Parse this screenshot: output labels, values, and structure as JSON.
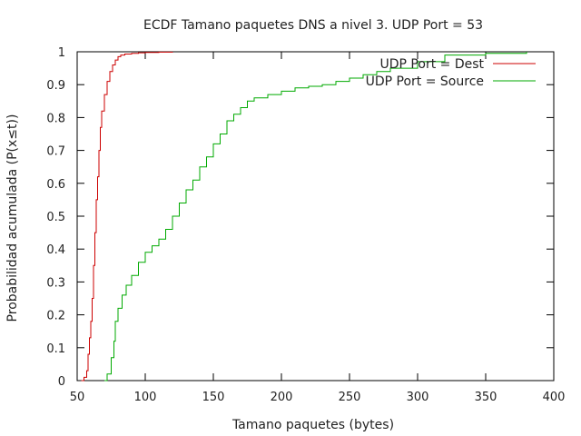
{
  "chart_data": {
    "type": "line",
    "title": "ECDF Tamano paquetes DNS a nivel 3. UDP Port = 53",
    "xlabel": "Tamano paquetes (bytes)",
    "ylabel": "Probabilidad acumulada (P(x≤t))",
    "xlim": [
      50,
      400
    ],
    "ylim": [
      0,
      1
    ],
    "xticks": [
      50,
      100,
      150,
      200,
      250,
      300,
      350,
      400
    ],
    "yticks": [
      0,
      0.1,
      0.2,
      0.3,
      0.4,
      0.5,
      0.6,
      0.7,
      0.8,
      0.9,
      1
    ],
    "grid": false,
    "legend_position": "top-right",
    "series": [
      {
        "name": "UDP Port = Dest",
        "color": "#cc0000",
        "x": [
          53,
          55,
          57,
          58,
          59,
          60,
          61,
          62,
          63,
          64,
          65,
          66,
          67,
          68,
          70,
          72,
          74,
          76,
          78,
          80,
          82,
          85,
          90,
          95,
          100,
          110,
          120
        ],
        "y": [
          0,
          0.01,
          0.03,
          0.08,
          0.13,
          0.18,
          0.25,
          0.35,
          0.45,
          0.55,
          0.62,
          0.7,
          0.77,
          0.82,
          0.87,
          0.91,
          0.94,
          0.96,
          0.975,
          0.985,
          0.99,
          0.993,
          0.995,
          0.997,
          0.998,
          0.999,
          1
        ]
      },
      {
        "name": "UDP Port = Source",
        "color": "#00aa00",
        "x": [
          70,
          72,
          75,
          77,
          78,
          80,
          83,
          86,
          90,
          95,
          100,
          105,
          110,
          115,
          120,
          125,
          130,
          135,
          140,
          145,
          150,
          155,
          160,
          165,
          170,
          175,
          180,
          190,
          200,
          210,
          220,
          230,
          240,
          250,
          260,
          270,
          280,
          300,
          320,
          350,
          380
        ],
        "y": [
          0,
          0.02,
          0.07,
          0.12,
          0.18,
          0.22,
          0.26,
          0.29,
          0.32,
          0.36,
          0.39,
          0.41,
          0.43,
          0.46,
          0.5,
          0.54,
          0.58,
          0.61,
          0.65,
          0.68,
          0.72,
          0.75,
          0.79,
          0.81,
          0.83,
          0.85,
          0.86,
          0.87,
          0.88,
          0.89,
          0.895,
          0.9,
          0.91,
          0.92,
          0.93,
          0.94,
          0.95,
          0.97,
          0.99,
          0.995,
          1
        ]
      }
    ]
  }
}
